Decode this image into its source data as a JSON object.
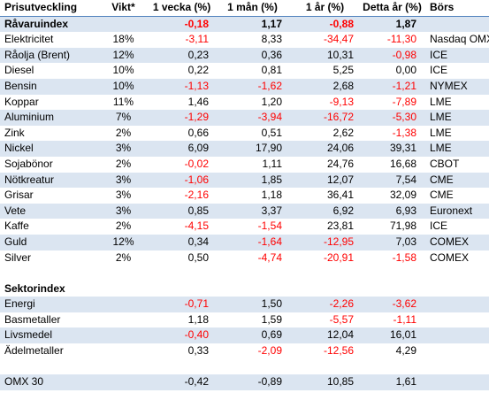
{
  "header": [
    "Prisutveckling",
    "Vikt*",
    "1 vecka (%)",
    "1 mån (%)",
    "1 år (%)",
    "Detta år (%)",
    "Börs"
  ],
  "summary": {
    "name": "Råvaruindex",
    "week": "-0,18",
    "month": "1,17",
    "year": "-0,88",
    "ytd": "1,87"
  },
  "commodities": [
    {
      "name": "Elektricitet",
      "weight": "18%",
      "week": "-3,11",
      "month": "8,33",
      "year": "-34,47",
      "ytd": "-11,30",
      "exchange": "Nasdaq OMX"
    },
    {
      "name": "Råolja (Brent)",
      "weight": "12%",
      "week": "0,23",
      "month": "0,36",
      "year": "10,31",
      "ytd": "-0,98",
      "exchange": "ICE"
    },
    {
      "name": "Diesel",
      "weight": "10%",
      "week": "0,22",
      "month": "0,81",
      "year": "5,25",
      "ytd": "0,00",
      "exchange": "ICE"
    },
    {
      "name": "Bensin",
      "weight": "10%",
      "week": "-1,13",
      "month": "-1,62",
      "year": "2,68",
      "ytd": "-1,21",
      "exchange": "NYMEX"
    },
    {
      "name": "Koppar",
      "weight": "11%",
      "week": "1,46",
      "month": "1,20",
      "year": "-9,13",
      "ytd": "-7,89",
      "exchange": "LME"
    },
    {
      "name": "Aluminium",
      "weight": "7%",
      "week": "-1,29",
      "month": "-3,94",
      "year": "-16,72",
      "ytd": "-5,30",
      "exchange": "LME"
    },
    {
      "name": "Zink",
      "weight": "2%",
      "week": "0,66",
      "month": "0,51",
      "year": "2,62",
      "ytd": "-1,38",
      "exchange": "LME"
    },
    {
      "name": "Nickel",
      "weight": "3%",
      "week": "6,09",
      "month": "17,90",
      "year": "24,06",
      "ytd": "39,31",
      "exchange": "LME"
    },
    {
      "name": "Sojabönor",
      "weight": "2%",
      "week": "-0,02",
      "month": "1,11",
      "year": "24,76",
      "ytd": "16,68",
      "exchange": "CBOT"
    },
    {
      "name": "Nötkreatur",
      "weight": "3%",
      "week": "-1,06",
      "month": "1,85",
      "year": "12,07",
      "ytd": "7,54",
      "exchange": "CME"
    },
    {
      "name": "Grisar",
      "weight": "3%",
      "week": "-2,16",
      "month": "1,18",
      "year": "36,41",
      "ytd": "32,09",
      "exchange": "CME"
    },
    {
      "name": "Vete",
      "weight": "3%",
      "week": "0,85",
      "month": "3,37",
      "year": "6,92",
      "ytd": "6,93",
      "exchange": "Euronext"
    },
    {
      "name": "Kaffe",
      "weight": "2%",
      "week": "-4,15",
      "month": "-1,54",
      "year": "23,81",
      "ytd": "71,98",
      "exchange": "ICE"
    },
    {
      "name": "Guld",
      "weight": "12%",
      "week": "0,34",
      "month": "-1,64",
      "year": "-12,95",
      "ytd": "7,03",
      "exchange": "COMEX"
    },
    {
      "name": "Silver",
      "weight": "2%",
      "week": "0,50",
      "month": "-4,74",
      "year": "-20,91",
      "ytd": "-1,58",
      "exchange": "COMEX"
    }
  ],
  "sector_title": "Sektorindex",
  "sectors": [
    {
      "name": "Energi",
      "week": "-0,71",
      "month": "1,50",
      "year": "-2,26",
      "ytd": "-3,62"
    },
    {
      "name": "Basmetaller",
      "week": "1,18",
      "month": "1,59",
      "year": "-5,57",
      "ytd": "-1,11"
    },
    {
      "name": "Livsmedel",
      "week": "-0,40",
      "month": "0,69",
      "year": "12,04",
      "ytd": "16,01"
    },
    {
      "name": "Ädelmetaller",
      "week": "0,33",
      "month": "-2,09",
      "year": "-12,56",
      "ytd": "4,29"
    }
  ],
  "omx": {
    "name": "OMX 30",
    "week": "-0,42",
    "month": "-0,89",
    "year": "10,85",
    "ytd": "1,61"
  },
  "colors": {
    "negative": "#ff0000",
    "band": "#dbe5f1",
    "rule": "#4f81bd"
  }
}
